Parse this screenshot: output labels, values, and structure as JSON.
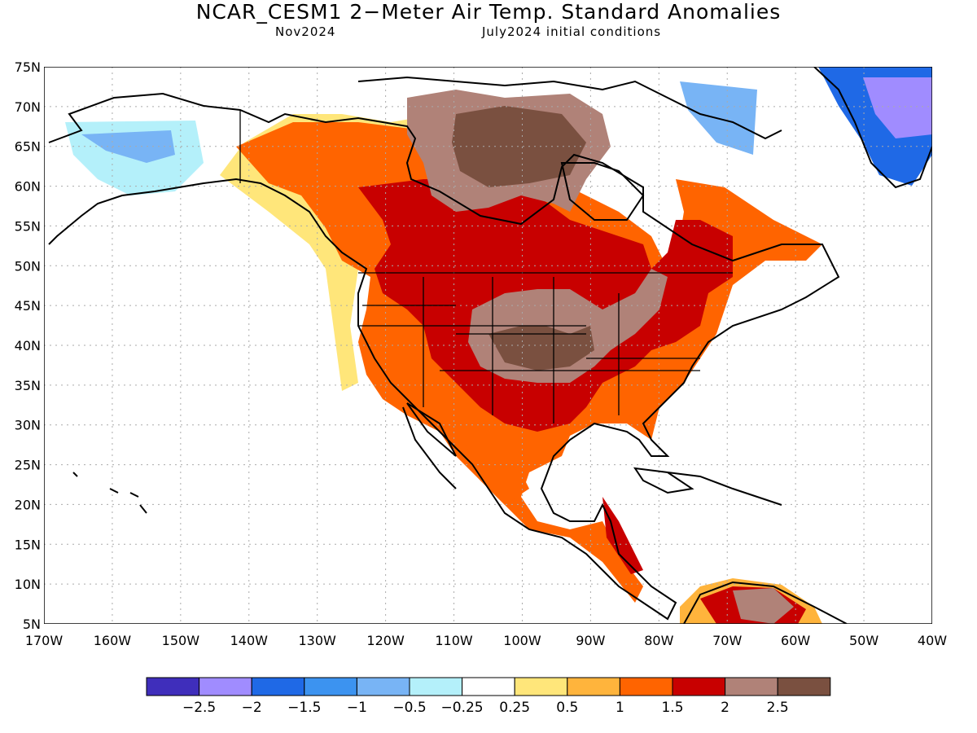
{
  "title": "NCAR_CESM1 2−Meter Air Temp. Standard Anomalies",
  "subtitle_left": "Nov2024",
  "subtitle_right": "July2024 initial conditions",
  "map": {
    "lat_labels": [
      "75N",
      "70N",
      "65N",
      "60N",
      "55N",
      "50N",
      "45N",
      "40N",
      "35N",
      "30N",
      "25N",
      "20N",
      "15N",
      "10N",
      "5N"
    ],
    "lon_labels": [
      "170W",
      "160W",
      "150W",
      "140W",
      "130W",
      "120W",
      "110W",
      "100W",
      "90W",
      "80W",
      "70W",
      "60W",
      "50W",
      "40W"
    ],
    "lon_range": [
      -170,
      -40
    ],
    "lat_range": [
      5,
      75
    ]
  },
  "colorbar": {
    "colors": [
      "#3f2ebb",
      "#a08cff",
      "#1f69e6",
      "#3c93f0",
      "#78b4f5",
      "#b4f0fa",
      "#ffffff",
      "#ffe67a",
      "#ffb43c",
      "#ff6400",
      "#c80000",
      "#b08278",
      "#7a5040"
    ],
    "labels": [
      "−2.5",
      "−2",
      "−1.5",
      "−1",
      "−0.5",
      "−0.25",
      "0.25",
      "0.5",
      "1",
      "1.5",
      "2",
      "2.5"
    ]
  }
}
